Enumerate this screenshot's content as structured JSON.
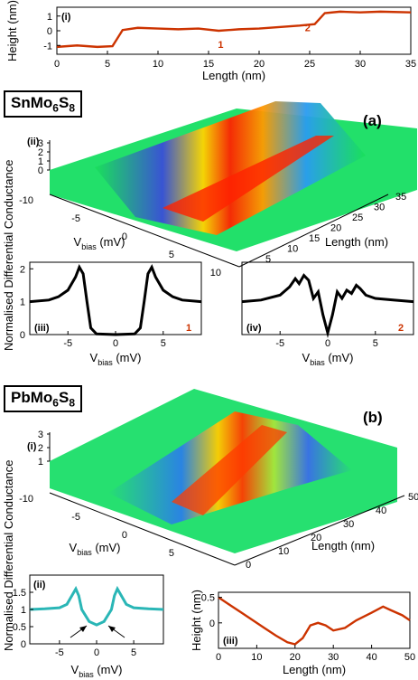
{
  "chart_data": [
    {
      "id": "top-height-profile",
      "type": "line",
      "panel_tag": "(i)",
      "xlabel": "Length (nm)",
      "ylabel": "Height (nm)",
      "xlim": [
        0,
        35
      ],
      "ylim": [
        -1.6,
        1.6
      ],
      "xticks": [
        "0",
        "5",
        "10",
        "15",
        "20",
        "25",
        "30",
        "35"
      ],
      "yticks": [
        "1",
        "0",
        "-1"
      ],
      "series_color": "#cc3300",
      "x": [
        0,
        2,
        4,
        5.5,
        6.5,
        8,
        10,
        12,
        14,
        16,
        18,
        20,
        22,
        24,
        25.5,
        26.5,
        28,
        30,
        32,
        35
      ],
      "y": [
        -1.1,
        -1.0,
        -1.1,
        -1.05,
        0.05,
        0.2,
        0.15,
        0.1,
        0.15,
        0.0,
        0.1,
        0.15,
        0.25,
        0.35,
        0.45,
        1.2,
        1.3,
        1.25,
        1.3,
        1.25
      ],
      "annotations": [
        {
          "text": "1",
          "x": 16.2,
          "y": -0.55
        },
        {
          "text": "2",
          "x": 24.8,
          "y": 0.6
        }
      ]
    },
    {
      "id": "snmo-3d",
      "type": "surface",
      "panel_tag": "(ii)",
      "material": "SnMo6S8",
      "figure_label": "(a)",
      "xlabel": "Vbias (mV)",
      "ylabel": "Length (nm)",
      "zlabel": "Normalised Differential Conductance",
      "xticks": [
        "-10",
        "-5",
        "0",
        "5",
        "10"
      ],
      "yticks": [
        "5",
        "10",
        "15",
        "20",
        "25",
        "30",
        "35"
      ],
      "zticks": [
        "3",
        "2",
        "1",
        "0"
      ]
    },
    {
      "id": "snmo-spectrum-1",
      "type": "line",
      "panel_tag": "(iii)",
      "marker": "1",
      "xlabel": "Vbias (mV)",
      "xlim": [
        -9,
        9
      ],
      "ylim": [
        0,
        2.2
      ],
      "xticks": [
        "-5",
        "0",
        "5"
      ],
      "yticks": [
        "0",
        "1",
        "2"
      ],
      "series_color": "#000000",
      "x": [
        -9,
        -7,
        -6,
        -5,
        -4.2,
        -3.8,
        -3.4,
        -3,
        -2.6,
        -2,
        0,
        2,
        2.6,
        3,
        3.4,
        3.8,
        4.2,
        5,
        6,
        7,
        9
      ],
      "y": [
        1.0,
        1.05,
        1.15,
        1.35,
        1.75,
        2.05,
        1.85,
        1.0,
        0.2,
        0.02,
        0.0,
        0.02,
        0.2,
        1.0,
        1.85,
        2.05,
        1.75,
        1.35,
        1.15,
        1.05,
        1.0
      ]
    },
    {
      "id": "snmo-spectrum-2",
      "type": "line",
      "panel_tag": "(iv)",
      "marker": "2",
      "xlabel": "Vbias (mV)",
      "xlim": [
        -9,
        9
      ],
      "ylim": [
        0,
        2.2
      ],
      "xticks": [
        "-5",
        "0",
        "5"
      ],
      "series_color": "#000000",
      "x": [
        -9,
        -7,
        -5,
        -4,
        -3.4,
        -3,
        -2.5,
        -2,
        -1.5,
        -1,
        -0.5,
        0,
        0.5,
        1,
        1.5,
        2,
        2.5,
        3,
        3.4,
        4,
        5,
        7,
        9
      ],
      "y": [
        1.0,
        1.05,
        1.2,
        1.45,
        1.7,
        1.55,
        1.8,
        1.65,
        1.1,
        1.3,
        0.6,
        0.05,
        0.6,
        1.3,
        1.1,
        1.35,
        1.25,
        1.5,
        1.4,
        1.2,
        1.1,
        1.05,
        1.0
      ]
    },
    {
      "id": "pbmo-3d",
      "type": "surface",
      "panel_tag": "(i)",
      "material": "PbMo6S8",
      "figure_label": "(b)",
      "xlabel": "Vbias (mV)",
      "ylabel": "Length (nm)",
      "zlabel": "Normalised Differential Conductance",
      "xticks": [
        "-10",
        "-5",
        "0",
        "5"
      ],
      "yticks": [
        "0",
        "10",
        "20",
        "30",
        "40",
        "50"
      ],
      "zticks": [
        "3",
        "2",
        "1"
      ]
    },
    {
      "id": "pbmo-spectrum",
      "type": "line",
      "panel_tag": "(ii)",
      "xlabel": "Vbias (mV)",
      "ylabel": "Normalised Differential Conductance",
      "xlim": [
        -9,
        9
      ],
      "ylim": [
        0,
        2
      ],
      "xticks": [
        "-5",
        "0",
        "5"
      ],
      "yticks": [
        "0",
        "0.5",
        "1",
        "1.5"
      ],
      "series_color": "#2ab6b6",
      "x": [
        -9,
        -7,
        -5,
        -4,
        -3.2,
        -2.8,
        -2.4,
        -2,
        -1,
        0,
        1,
        2,
        2.4,
        2.8,
        3.2,
        4,
        5,
        7,
        9
      ],
      "y": [
        1.0,
        1.02,
        1.05,
        1.15,
        1.45,
        1.6,
        1.4,
        1.0,
        0.65,
        0.55,
        0.65,
        1.0,
        1.4,
        1.6,
        1.45,
        1.15,
        1.05,
        1.02,
        1.0
      ]
    },
    {
      "id": "pbmo-height-profile",
      "type": "line",
      "panel_tag": "(iii)",
      "xlabel": "Length (nm)",
      "ylabel": "Height (nm)",
      "xlim": [
        0,
        50
      ],
      "ylim": [
        -0.5,
        0.6
      ],
      "xticks": [
        "0",
        "10",
        "20",
        "30",
        "40",
        "50"
      ],
      "yticks": [
        "0.5",
        "0"
      ],
      "series_color": "#cc3300",
      "x": [
        0,
        3,
        6,
        9,
        12,
        15,
        18,
        20,
        22,
        24,
        26,
        28,
        30,
        33,
        36,
        40,
        43,
        45,
        48,
        50
      ],
      "y": [
        0.5,
        0.35,
        0.2,
        0.05,
        -0.1,
        -0.25,
        -0.38,
        -0.42,
        -0.3,
        -0.05,
        0.0,
        -0.05,
        -0.15,
        -0.1,
        0.05,
        0.2,
        0.32,
        0.25,
        0.15,
        0.05
      ]
    }
  ]
}
